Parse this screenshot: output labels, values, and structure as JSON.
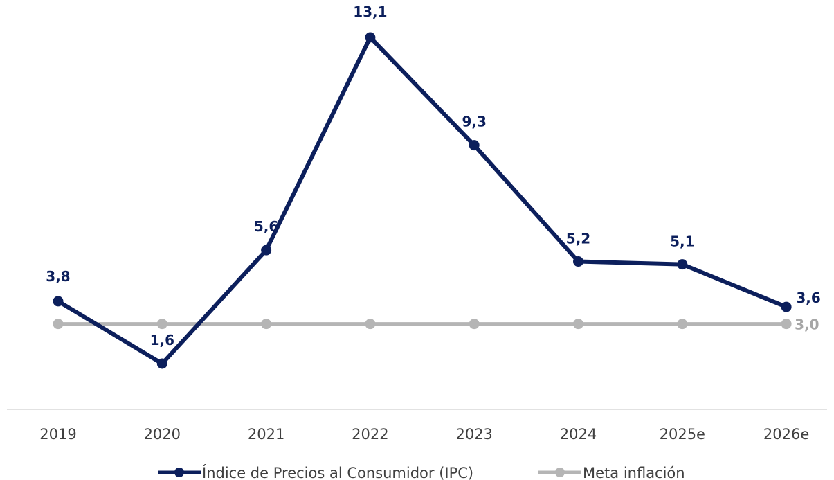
{
  "chart_data": {
    "type": "line",
    "title": "",
    "xlabel": "",
    "ylabel": "",
    "categories": [
      "2019",
      "2020",
      "2021",
      "2022",
      "2023",
      "2024",
      "2025e",
      "2026e"
    ],
    "ylim": [
      0,
      14
    ],
    "grid": false,
    "legend_position": "bottom",
    "series": [
      {
        "name": "Índice de Precios al Consumidor (IPC)",
        "color": "#0c1f5c",
        "values": [
          3.8,
          1.6,
          5.6,
          13.1,
          9.3,
          5.2,
          5.1,
          3.6
        ],
        "labels": [
          "3,8",
          "1,6",
          "5,6",
          "13,1",
          "9,3",
          "5,2",
          "5,1",
          "3,6"
        ]
      },
      {
        "name": "Meta inflación",
        "color": "#b5b5b5",
        "values": [
          3.0,
          3.0,
          3.0,
          3.0,
          3.0,
          3.0,
          3.0,
          3.0
        ],
        "end_label": "3,0"
      }
    ]
  }
}
